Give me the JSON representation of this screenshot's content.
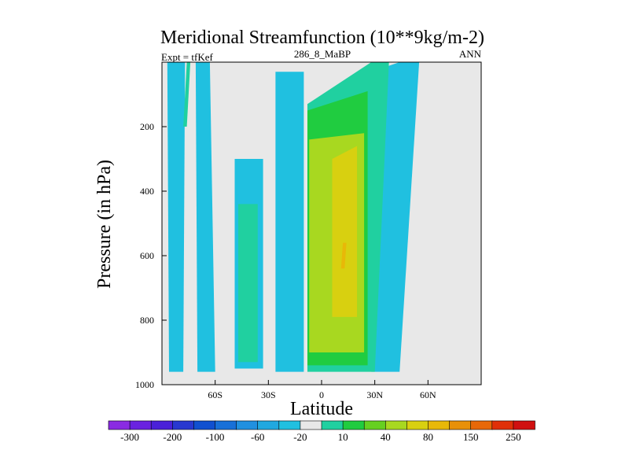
{
  "chart_data": {
    "type": "heatmap",
    "title": "Meridional Streamfunction (10**9kg/m-2)",
    "subtitle_left": "Expt = tfKef",
    "subtitle_center": "286_8_MaBP",
    "subtitle_right": "ANN",
    "xlabel": "Latitude",
    "ylabel": "Pressure (in hPa)",
    "x_range": [
      -90,
      90
    ],
    "y_range": [
      0,
      1000
    ],
    "y_reversed": true,
    "x_ticks": [
      {
        "value": -60,
        "label": "60S"
      },
      {
        "value": -30,
        "label": "30S"
      },
      {
        "value": 0,
        "label": "0"
      },
      {
        "value": 30,
        "label": "30N"
      },
      {
        "value": 60,
        "label": "60N"
      }
    ],
    "y_ticks": [
      {
        "value": 200,
        "label": "200"
      },
      {
        "value": 400,
        "label": "400"
      },
      {
        "value": 600,
        "label": "600"
      },
      {
        "value": 800,
        "label": "800"
      },
      {
        "value": 1000,
        "label": "1000"
      }
    ],
    "colorbar": {
      "colors": [
        "#8a2be2",
        "#6a22e0",
        "#4a20d8",
        "#2838d0",
        "#1050d0",
        "#1870d8",
        "#2090e0",
        "#20a8e0",
        "#20c0e0",
        "#e8e8e8",
        "#20d0a0",
        "#20cc40",
        "#66d020",
        "#a8d820",
        "#d8d010",
        "#e8b808",
        "#e89008",
        "#e86808",
        "#e03008",
        "#d01010"
      ],
      "labels": [
        "-300",
        "-200",
        "-100",
        "-60",
        "-20",
        "10",
        "40",
        "80",
        "150",
        "250"
      ]
    },
    "contour_regions": [
      {
        "value": -20,
        "color": "#20c0e0",
        "outline": [
          [
            -87,
            0
          ],
          [
            -77,
            0
          ],
          [
            -78,
            960
          ],
          [
            -86,
            960
          ]
        ]
      },
      {
        "value": -20,
        "color": "#20c0e0",
        "outline": [
          [
            -71,
            0
          ],
          [
            -63,
            0
          ],
          [
            -60,
            960
          ],
          [
            -70,
            960
          ]
        ]
      },
      {
        "value": -20,
        "color": "#20c0e0",
        "outline": [
          [
            -49,
            300
          ],
          [
            -33,
            300
          ],
          [
            -33,
            950
          ],
          [
            -49,
            950
          ]
        ]
      },
      {
        "value": -20,
        "color": "#20c0e0",
        "outline": [
          [
            -26,
            30
          ],
          [
            -10,
            30
          ],
          [
            -10,
            960
          ],
          [
            -26,
            960
          ]
        ]
      },
      {
        "value": -20,
        "color": "#20c0e0",
        "outline": [
          [
            28,
            30
          ],
          [
            44,
            0
          ],
          [
            55,
            0
          ],
          [
            44,
            960
          ],
          [
            28,
            960
          ]
        ]
      },
      {
        "value": 10,
        "color": "#20d0a0",
        "outline": [
          [
            -76,
            0
          ],
          [
            -74,
            0
          ],
          [
            -76,
            200
          ],
          [
            -78,
            200
          ]
        ]
      },
      {
        "value": 10,
        "color": "#20d0a0",
        "outline": [
          [
            -47,
            440
          ],
          [
            -36,
            440
          ],
          [
            -36,
            930
          ],
          [
            -47,
            930
          ]
        ]
      },
      {
        "value": 10,
        "color": "#20d0a0",
        "outline": [
          [
            -8,
            130
          ],
          [
            28,
            0
          ],
          [
            38,
            0
          ],
          [
            30,
            960
          ],
          [
            -8,
            960
          ]
        ]
      },
      {
        "value": 40,
        "color": "#20cc40",
        "outline": [
          [
            -8,
            150
          ],
          [
            26,
            90
          ],
          [
            26,
            940
          ],
          [
            -8,
            940
          ]
        ]
      },
      {
        "value": 80,
        "color": "#a8d820",
        "outline": [
          [
            -7,
            240
          ],
          [
            24,
            220
          ],
          [
            24,
            900
          ],
          [
            -7,
            900
          ]
        ]
      },
      {
        "value": 150,
        "color": "#d8d010",
        "outline": [
          [
            6,
            300
          ],
          [
            20,
            260
          ],
          [
            20,
            790
          ],
          [
            6,
            790
          ]
        ]
      },
      {
        "value": 250,
        "color": "#e8b808",
        "outline": [
          [
            12,
            560
          ],
          [
            14,
            560
          ],
          [
            13,
            640
          ],
          [
            11,
            640
          ]
        ]
      }
    ]
  }
}
